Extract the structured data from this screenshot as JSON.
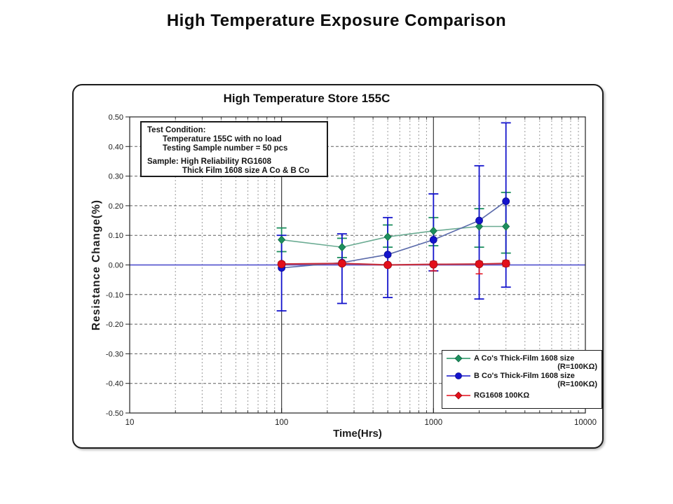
{
  "page": {
    "title": "High Temperature Exposure Comparison"
  },
  "chart": {
    "title": "High Temperature Store 155C",
    "note": {
      "line1": "Test Condition:",
      "line2": "Temperature 155C  with no load",
      "line3": "Testing Sample number = 50 pcs",
      "line4": "Sample: High Reliability RG1608",
      "line5": "Thick Film 1608 size A Co & B Co"
    }
  },
  "chart_data": {
    "type": "line",
    "title": "High Temperature Store 155C",
    "xlabel": "Time(Hrs)",
    "ylabel": "Resistance Change(%)",
    "xscale": "log",
    "xlim": [
      10,
      10000
    ],
    "ylim": [
      -0.5,
      0.5
    ],
    "xticks": [
      "10",
      "100",
      "1000",
      "10000"
    ],
    "yticks": [
      "0.50",
      "0.40",
      "0.30",
      "0.20",
      "0.10",
      "0.00",
      "-0.10",
      "-0.20",
      "-0.30",
      "-0.40",
      "-0.50"
    ],
    "grid": "log minor vertical dashed, 0.10-step horizontal dashed, solid verticals at 100 and 1000",
    "zero_line_color": "#5a5ad0",
    "legend_position": "bottom-right",
    "x": [
      100,
      250,
      500,
      1000,
      2000,
      3000
    ],
    "series": [
      {
        "name": "A Co's Thick-Film 1608 size (R=100KΩ)",
        "legend_label": "A Co's Thick-Film 1608 size",
        "legend_sub": "(R=100KΩ)",
        "marker": "diamond",
        "color": "#1e8f5e",
        "line_color": "#6aab92",
        "values": [
          0.085,
          0.06,
          0.095,
          0.115,
          0.13,
          0.13
        ],
        "err_high": [
          0.125,
          0.09,
          0.135,
          0.16,
          0.19,
          0.245
        ],
        "err_low": [
          0.045,
          0.025,
          0.06,
          0.065,
          0.06,
          0.04
        ]
      },
      {
        "name": "B Co's Thick-Film 1608 size (R=100KΩ)",
        "legend_label": "B Co's Thick-Film 1608 size",
        "legend_sub": "(R=100KΩ)",
        "marker": "circle",
        "color": "#1414cc",
        "line_color": "#5a6aaa",
        "values": [
          -0.01,
          0.008,
          0.035,
          0.085,
          0.15,
          0.215
        ],
        "err_high": [
          0.1,
          0.105,
          0.16,
          0.24,
          0.335,
          0.48
        ],
        "err_low": [
          -0.155,
          -0.13,
          -0.11,
          -0.02,
          -0.115,
          -0.075
        ]
      },
      {
        "name": "RG1608 100KΩ",
        "legend_label": "RG1608 100KΩ",
        "legend_sub": "",
        "marker": "circle",
        "color": "#e30f1a",
        "line_color": "#c5303f",
        "values": [
          0.003,
          0.005,
          0.0,
          0.002,
          0.003,
          0.005
        ],
        "err_high": [
          0.01,
          0.012,
          0.006,
          0.012,
          0.012,
          0.015
        ],
        "err_low": [
          -0.008,
          -0.002,
          -0.006,
          -0.02,
          -0.03,
          -0.005
        ]
      }
    ]
  }
}
